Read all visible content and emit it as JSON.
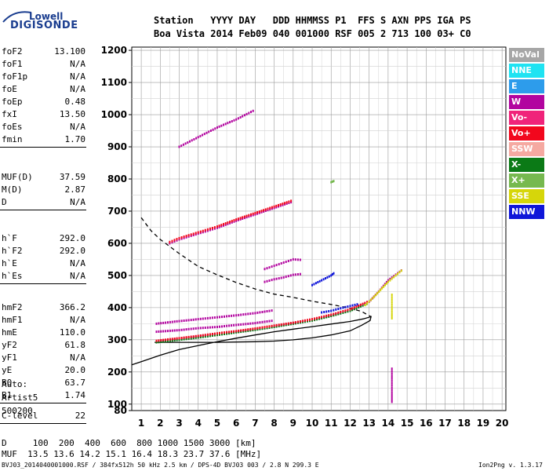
{
  "logo": {
    "top": "Lowell",
    "bottom": "DIGISONDE"
  },
  "header": {
    "line1": "Station   YYYY DAY   DDD HHMMSS P1  FFS S AXN PPS IGA PS",
    "line2": "Boa Vista 2014 Feb09 040 001000 RSF 005 2 713 100 03+ C0"
  },
  "params": {
    "group1": [
      {
        "k": "foF2",
        "v": "13.100"
      },
      {
        "k": "foF1",
        "v": "N/A"
      },
      {
        "k": "foF1p",
        "v": "N/A"
      },
      {
        "k": "foE",
        "v": "N/A"
      },
      {
        "k": "foEp",
        "v": "0.48"
      },
      {
        "k": "fxI",
        "v": "13.50"
      },
      {
        "k": "foEs",
        "v": "N/A"
      },
      {
        "k": "fmin",
        "v": "1.70"
      }
    ],
    "group2": [
      {
        "k": "MUF(D)",
        "v": "37.59"
      },
      {
        "k": "M(D)",
        "v": "2.87"
      },
      {
        "k": "D",
        "v": "N/A"
      }
    ],
    "group3": [
      {
        "k": "h`F",
        "v": "292.0"
      },
      {
        "k": "h`F2",
        "v": "292.0"
      },
      {
        "k": "h`E",
        "v": "N/A"
      },
      {
        "k": "h`Es",
        "v": "N/A"
      }
    ],
    "group4": [
      {
        "k": "hmF2",
        "v": "366.2"
      },
      {
        "k": "hmF1",
        "v": "N/A"
      },
      {
        "k": "hmE",
        "v": "110.0"
      },
      {
        "k": "yF2",
        "v": "61.8"
      },
      {
        "k": "yF1",
        "v": "N/A"
      },
      {
        "k": "yE",
        "v": "20.0"
      },
      {
        "k": "B0",
        "v": "63.7"
      },
      {
        "k": "B1",
        "v": "1.74"
      }
    ],
    "group5": [
      {
        "k": "C-level",
        "v": "22"
      }
    ],
    "auto": [
      "Auto:",
      "Artist5",
      "500200"
    ]
  },
  "legend": [
    {
      "label": "NoVal",
      "color": "#a6a6a6"
    },
    {
      "label": "NNE",
      "color": "#1fe3f2"
    },
    {
      "label": "E",
      "color": "#2d9ceb"
    },
    {
      "label": "W",
      "color": "#b2049f"
    },
    {
      "label": "Vo-",
      "color": "#f0237a"
    },
    {
      "label": "Vo+",
      "color": "#f2071d"
    },
    {
      "label": "SSW",
      "color": "#f5a9a1"
    },
    {
      "label": "X-",
      "color": "#0b7a16"
    },
    {
      "label": "X+",
      "color": "#76b94f"
    },
    {
      "label": "SSE",
      "color": "#d6d60a"
    },
    {
      "label": "NNW",
      "color": "#0f16d9"
    }
  ],
  "bottom": {
    "line1": "D     100  200  400  600  800 1000 1500 3000 [km]",
    "line2": "MUF  13.5 13.6 14.2 15.1 16.4 18.3 23.7 37.6 [MHz]",
    "footer_left": "BVJ03_2014040001000.RSF / 384fx512h 50 kHz 2.5 km / DPS-4D BVJ03 003 / 2.8 N 299.3 E",
    "footer_right": "Ion2Png v. 1.3.17"
  },
  "chart_data": {
    "type": "scatter",
    "xlabel": "",
    "ylabel": "",
    "xlim": [
      0.5,
      20.2
    ],
    "ylim": [
      80,
      1210
    ],
    "x_ticks": [
      1,
      2,
      3,
      4,
      5,
      6,
      7,
      8,
      9,
      10,
      11,
      12,
      13,
      14,
      15,
      16,
      17,
      18,
      19,
      20
    ],
    "y_ticks": [
      80,
      100,
      200,
      300,
      400,
      500,
      600,
      700,
      800,
      900,
      1000,
      1100,
      1200
    ],
    "grid": true,
    "series": [
      {
        "kind": "trace-solid",
        "color": "#000000",
        "points": [
          [
            0.5,
            222
          ],
          [
            1.0,
            232
          ],
          [
            2.0,
            252
          ],
          [
            3.0,
            270
          ],
          [
            4.0,
            282
          ],
          [
            5.0,
            294
          ],
          [
            6.0,
            305
          ],
          [
            7.0,
            315
          ],
          [
            8.0,
            325
          ],
          [
            9.0,
            333
          ],
          [
            10.0,
            341
          ],
          [
            11.0,
            349
          ],
          [
            12.0,
            357
          ],
          [
            12.7,
            365
          ],
          [
            13.1,
            372
          ],
          [
            13.05,
            360
          ],
          [
            12.6,
            345
          ],
          [
            12.0,
            328
          ],
          [
            11.0,
            315
          ],
          [
            10.0,
            306
          ],
          [
            9.0,
            300
          ],
          [
            8.0,
            296
          ],
          [
            7.0,
            294
          ],
          [
            6.0,
            293
          ],
          [
            5.0,
            292
          ],
          [
            4.0,
            292
          ],
          [
            3.0,
            292
          ],
          [
            2.0,
            292
          ],
          [
            1.7,
            292
          ]
        ]
      },
      {
        "kind": "trace-dashed",
        "color": "#000000",
        "points": [
          [
            1.0,
            680
          ],
          [
            1.5,
            640
          ],
          [
            2.0,
            612
          ],
          [
            3.0,
            568
          ],
          [
            4.0,
            528
          ],
          [
            5.0,
            502
          ],
          [
            6.0,
            478
          ],
          [
            7.0,
            458
          ],
          [
            8.0,
            442
          ],
          [
            9.0,
            432
          ],
          [
            10.0,
            420
          ],
          [
            11.0,
            410
          ],
          [
            12.0,
            398
          ],
          [
            12.6,
            388
          ],
          [
            13.1,
            372
          ]
        ]
      },
      {
        "kind": "echo",
        "color": "#b2049f",
        "points": [
          [
            1.8,
            295
          ],
          [
            3,
            303
          ],
          [
            4,
            310
          ],
          [
            5,
            318
          ],
          [
            6,
            325
          ],
          [
            7,
            333
          ],
          [
            8,
            342
          ],
          [
            9,
            351
          ],
          [
            10,
            362
          ],
          [
            11,
            376
          ],
          [
            12,
            392
          ],
          [
            13,
            418
          ],
          [
            13.5,
            450
          ],
          [
            14.0,
            485
          ],
          [
            14.8,
            520
          ]
        ]
      },
      {
        "kind": "echo",
        "color": "#0b7a16",
        "points": [
          [
            1.8,
            292
          ],
          [
            3,
            300
          ],
          [
            4,
            307
          ],
          [
            5,
            315
          ],
          [
            6,
            323
          ],
          [
            7,
            331
          ],
          [
            8,
            340
          ],
          [
            9,
            350
          ],
          [
            10,
            360
          ],
          [
            11,
            374
          ],
          [
            12,
            390
          ],
          [
            13,
            415
          ]
        ]
      },
      {
        "kind": "echo",
        "color": "#f2071d",
        "points": [
          [
            1.8,
            297
          ],
          [
            3,
            305
          ],
          [
            4,
            312
          ],
          [
            5,
            320
          ],
          [
            6,
            327
          ],
          [
            7,
            335
          ],
          [
            8,
            344
          ],
          [
            9,
            353
          ],
          [
            10,
            364
          ],
          [
            11,
            378
          ],
          [
            12,
            395
          ],
          [
            13,
            420
          ]
        ]
      },
      {
        "kind": "echo",
        "color": "#d6d60a",
        "points": [
          [
            12.8,
            408
          ],
          [
            13.2,
            430
          ],
          [
            13.6,
            455
          ],
          [
            14.0,
            480
          ],
          [
            14.4,
            500
          ],
          [
            14.8,
            520
          ]
        ]
      },
      {
        "kind": "echo",
        "color": "#0f16d9",
        "points": [
          [
            10.5,
            385
          ],
          [
            11,
            390
          ],
          [
            11.5,
            398
          ],
          [
            12,
            405
          ],
          [
            12.5,
            412
          ]
        ]
      },
      {
        "kind": "echo",
        "color": "#b2049f",
        "points": [
          [
            1.8,
            325
          ],
          [
            3,
            330
          ],
          [
            4,
            336
          ],
          [
            5,
            340
          ],
          [
            6,
            346
          ],
          [
            7,
            352
          ],
          [
            8,
            360
          ]
        ]
      },
      {
        "kind": "echo",
        "color": "#b2049f",
        "points": [
          [
            1.8,
            350
          ],
          [
            3,
            358
          ],
          [
            4,
            364
          ],
          [
            5,
            370
          ],
          [
            6,
            376
          ],
          [
            7,
            383
          ],
          [
            8,
            392
          ]
        ]
      },
      {
        "kind": "echo",
        "color": "#b2049f",
        "points": [
          [
            2.5,
            600
          ],
          [
            3,
            612
          ],
          [
            4,
            630
          ],
          [
            5,
            648
          ],
          [
            6,
            670
          ],
          [
            7,
            690
          ],
          [
            8,
            710
          ],
          [
            9,
            730
          ]
        ]
      },
      {
        "kind": "echo",
        "color": "#f2071d",
        "points": [
          [
            2.5,
            604
          ],
          [
            3,
            616
          ],
          [
            4,
            634
          ],
          [
            5,
            652
          ],
          [
            6,
            674
          ],
          [
            7,
            694
          ],
          [
            8,
            714
          ],
          [
            9,
            734
          ]
        ]
      },
      {
        "kind": "echo",
        "color": "#b2049f",
        "points": [
          [
            3,
            900
          ],
          [
            4,
            930
          ],
          [
            5,
            960
          ],
          [
            6,
            985
          ],
          [
            7,
            1015
          ]
        ]
      },
      {
        "kind": "echo",
        "color": "#b2049f",
        "points": [
          [
            7.5,
            520
          ],
          [
            8,
            530
          ],
          [
            8.5,
            540
          ],
          [
            9,
            550
          ],
          [
            9.5,
            548
          ]
        ]
      },
      {
        "kind": "echo",
        "color": "#b2049f",
        "points": [
          [
            7.5,
            480
          ],
          [
            8,
            488
          ],
          [
            8.5,
            494
          ],
          [
            9,
            502
          ],
          [
            9.5,
            505
          ]
        ]
      },
      {
        "kind": "echo",
        "color": "#0f16d9",
        "points": [
          [
            10,
            470
          ],
          [
            10.5,
            485
          ],
          [
            11,
            500
          ],
          [
            11.2,
            510
          ]
        ]
      },
      {
        "kind": "echo",
        "color": "#d6d60a",
        "points": [
          [
            14.2,
            440
          ],
          [
            14.2,
            410
          ],
          [
            14.2,
            380
          ],
          [
            14.2,
            360
          ]
        ]
      },
      {
        "kind": "echo",
        "color": "#b2049f",
        "points": [
          [
            14.2,
            210
          ],
          [
            14.2,
            180
          ],
          [
            14.2,
            150
          ],
          [
            14.2,
            100
          ]
        ]
      },
      {
        "kind": "echo",
        "color": "#76b94f",
        "points": [
          [
            11,
            790
          ],
          [
            11.2,
            795
          ]
        ]
      }
    ]
  }
}
